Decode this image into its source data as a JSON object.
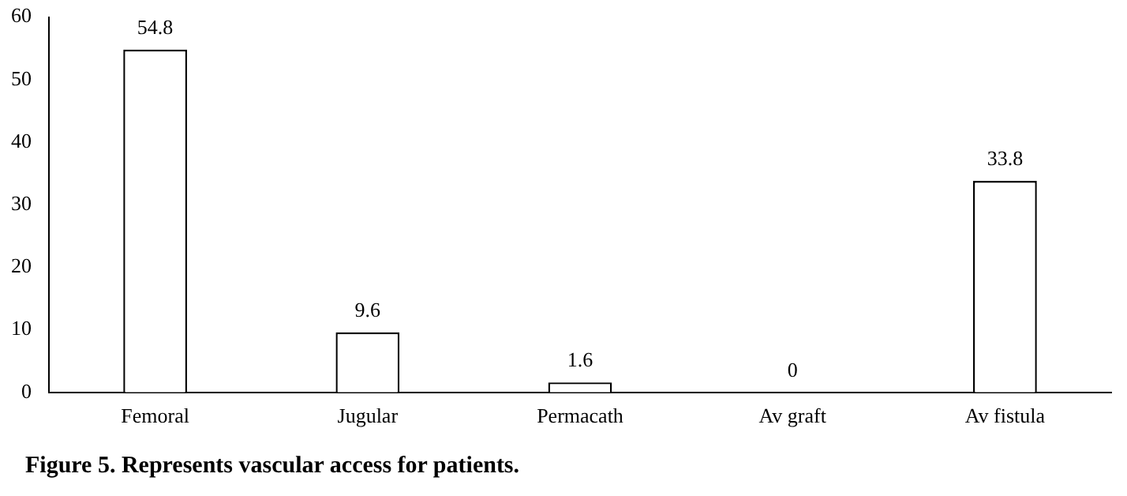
{
  "chart_data": {
    "type": "bar",
    "categories": [
      "Femoral",
      "Jugular",
      "Permacath",
      "Av graft",
      "Av fistula"
    ],
    "values": [
      54.8,
      9.6,
      1.6,
      0,
      33.8
    ],
    "color": "#ffffff",
    "ylim": [
      0,
      60
    ],
    "yticks": [
      0,
      10,
      20,
      30,
      40,
      50,
      60
    ],
    "grid": false,
    "legend": false,
    "data_labels": true,
    "annotations": [
      "Figure 5. Represents vascular access for patients."
    ]
  }
}
